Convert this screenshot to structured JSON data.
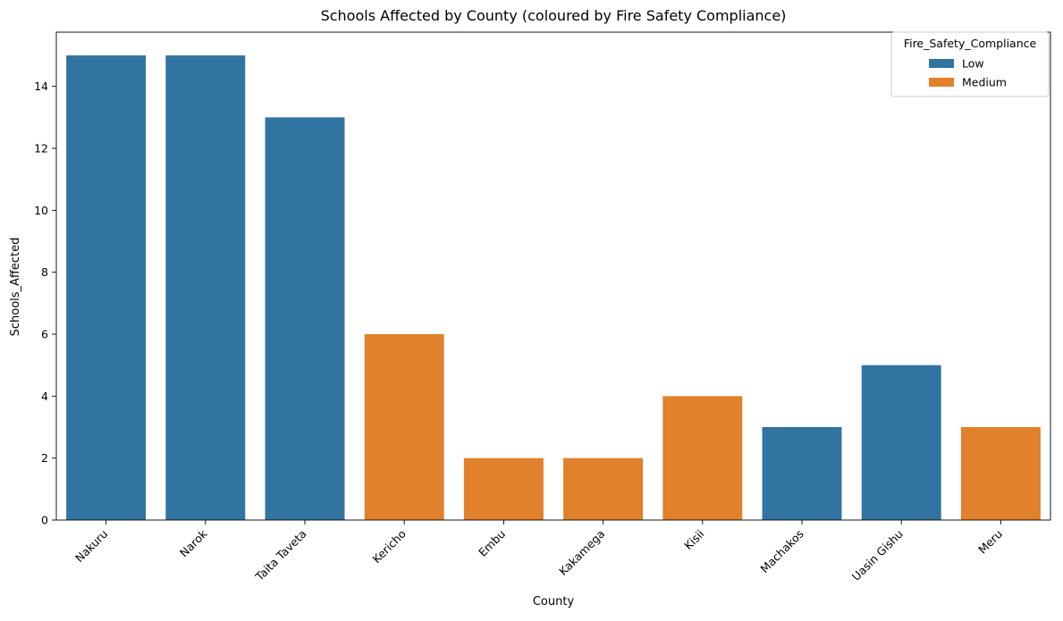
{
  "chart_data": {
    "type": "bar",
    "title": "Schools Affected by County (coloured by Fire Safety Compliance)",
    "xlabel": "County",
    "ylabel": "Schools_Affected",
    "ylim": [
      0,
      15.75
    ],
    "yticks": [
      0,
      2,
      4,
      6,
      8,
      10,
      12,
      14
    ],
    "categories": [
      "Nakuru",
      "Narok",
      "Taita Taveta",
      "Kericho",
      "Embu",
      "Kakamega",
      "Kisii",
      "Machakos",
      "Uasin Gishu",
      "Meru"
    ],
    "values": [
      15,
      15,
      13,
      6,
      2,
      2,
      4,
      3,
      5,
      3
    ],
    "groups": [
      "Low",
      "Low",
      "Low",
      "Medium",
      "Medium",
      "Medium",
      "Medium",
      "Low",
      "Low",
      "Medium"
    ],
    "legend": {
      "title": "Fire_Safety_Compliance",
      "position": "top-right",
      "entries": [
        {
          "label": "Low",
          "color": "#3274a1"
        },
        {
          "label": "Medium",
          "color": "#e1812c"
        }
      ]
    },
    "grid": false
  }
}
